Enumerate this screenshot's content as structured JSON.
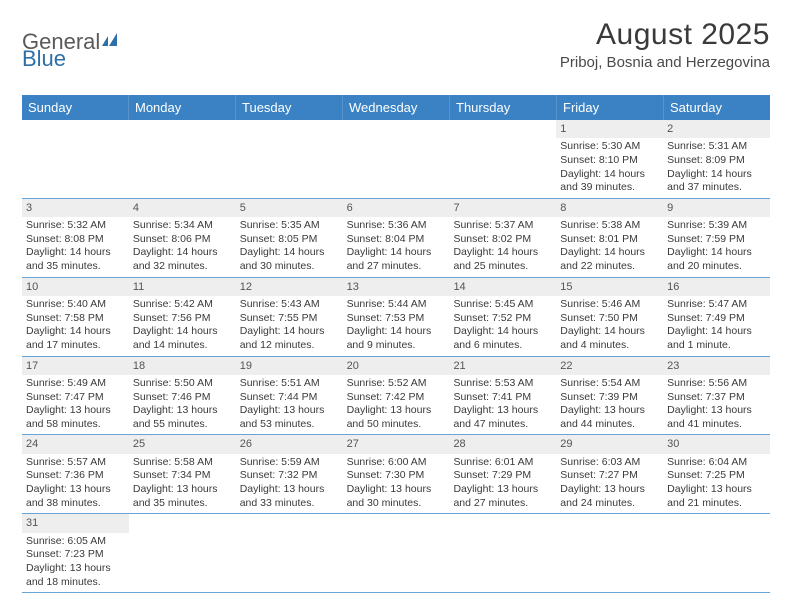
{
  "logo": {
    "text1": "General",
    "text2": "Blue"
  },
  "title": "August 2025",
  "subtitle": "Priboj, Bosnia and Herzegovina",
  "colors": {
    "header_bg": "#3a82c4",
    "header_text": "#ffffff",
    "daynum_bg": "#eeeeee",
    "row_border": "#6aa3d6",
    "body_text": "#3a3a3a",
    "logo_gray": "#5a5a5a",
    "logo_blue": "#2f6fa7"
  },
  "dow": [
    "Sunday",
    "Monday",
    "Tuesday",
    "Wednesday",
    "Thursday",
    "Friday",
    "Saturday"
  ],
  "days": [
    {
      "n": "1",
      "sr": "5:30 AM",
      "ss": "8:10 PM",
      "dl": "14 hours and 39 minutes."
    },
    {
      "n": "2",
      "sr": "5:31 AM",
      "ss": "8:09 PM",
      "dl": "14 hours and 37 minutes."
    },
    {
      "n": "3",
      "sr": "5:32 AM",
      "ss": "8:08 PM",
      "dl": "14 hours and 35 minutes."
    },
    {
      "n": "4",
      "sr": "5:34 AM",
      "ss": "8:06 PM",
      "dl": "14 hours and 32 minutes."
    },
    {
      "n": "5",
      "sr": "5:35 AM",
      "ss": "8:05 PM",
      "dl": "14 hours and 30 minutes."
    },
    {
      "n": "6",
      "sr": "5:36 AM",
      "ss": "8:04 PM",
      "dl": "14 hours and 27 minutes."
    },
    {
      "n": "7",
      "sr": "5:37 AM",
      "ss": "8:02 PM",
      "dl": "14 hours and 25 minutes."
    },
    {
      "n": "8",
      "sr": "5:38 AM",
      "ss": "8:01 PM",
      "dl": "14 hours and 22 minutes."
    },
    {
      "n": "9",
      "sr": "5:39 AM",
      "ss": "7:59 PM",
      "dl": "14 hours and 20 minutes."
    },
    {
      "n": "10",
      "sr": "5:40 AM",
      "ss": "7:58 PM",
      "dl": "14 hours and 17 minutes."
    },
    {
      "n": "11",
      "sr": "5:42 AM",
      "ss": "7:56 PM",
      "dl": "14 hours and 14 minutes."
    },
    {
      "n": "12",
      "sr": "5:43 AM",
      "ss": "7:55 PM",
      "dl": "14 hours and 12 minutes."
    },
    {
      "n": "13",
      "sr": "5:44 AM",
      "ss": "7:53 PM",
      "dl": "14 hours and 9 minutes."
    },
    {
      "n": "14",
      "sr": "5:45 AM",
      "ss": "7:52 PM",
      "dl": "14 hours and 6 minutes."
    },
    {
      "n": "15",
      "sr": "5:46 AM",
      "ss": "7:50 PM",
      "dl": "14 hours and 4 minutes."
    },
    {
      "n": "16",
      "sr": "5:47 AM",
      "ss": "7:49 PM",
      "dl": "14 hours and 1 minute."
    },
    {
      "n": "17",
      "sr": "5:49 AM",
      "ss": "7:47 PM",
      "dl": "13 hours and 58 minutes."
    },
    {
      "n": "18",
      "sr": "5:50 AM",
      "ss": "7:46 PM",
      "dl": "13 hours and 55 minutes."
    },
    {
      "n": "19",
      "sr": "5:51 AM",
      "ss": "7:44 PM",
      "dl": "13 hours and 53 minutes."
    },
    {
      "n": "20",
      "sr": "5:52 AM",
      "ss": "7:42 PM",
      "dl": "13 hours and 50 minutes."
    },
    {
      "n": "21",
      "sr": "5:53 AM",
      "ss": "7:41 PM",
      "dl": "13 hours and 47 minutes."
    },
    {
      "n": "22",
      "sr": "5:54 AM",
      "ss": "7:39 PM",
      "dl": "13 hours and 44 minutes."
    },
    {
      "n": "23",
      "sr": "5:56 AM",
      "ss": "7:37 PM",
      "dl": "13 hours and 41 minutes."
    },
    {
      "n": "24",
      "sr": "5:57 AM",
      "ss": "7:36 PM",
      "dl": "13 hours and 38 minutes."
    },
    {
      "n": "25",
      "sr": "5:58 AM",
      "ss": "7:34 PM",
      "dl": "13 hours and 35 minutes."
    },
    {
      "n": "26",
      "sr": "5:59 AM",
      "ss": "7:32 PM",
      "dl": "13 hours and 33 minutes."
    },
    {
      "n": "27",
      "sr": "6:00 AM",
      "ss": "7:30 PM",
      "dl": "13 hours and 30 minutes."
    },
    {
      "n": "28",
      "sr": "6:01 AM",
      "ss": "7:29 PM",
      "dl": "13 hours and 27 minutes."
    },
    {
      "n": "29",
      "sr": "6:03 AM",
      "ss": "7:27 PM",
      "dl": "13 hours and 24 minutes."
    },
    {
      "n": "30",
      "sr": "6:04 AM",
      "ss": "7:25 PM",
      "dl": "13 hours and 21 minutes."
    },
    {
      "n": "31",
      "sr": "6:05 AM",
      "ss": "7:23 PM",
      "dl": "13 hours and 18 minutes."
    }
  ],
  "labels": {
    "sunrise": "Sunrise: ",
    "sunset": "Sunset: ",
    "daylight": "Daylight: "
  },
  "layout": {
    "first_day_column": 5,
    "columns": 7
  }
}
